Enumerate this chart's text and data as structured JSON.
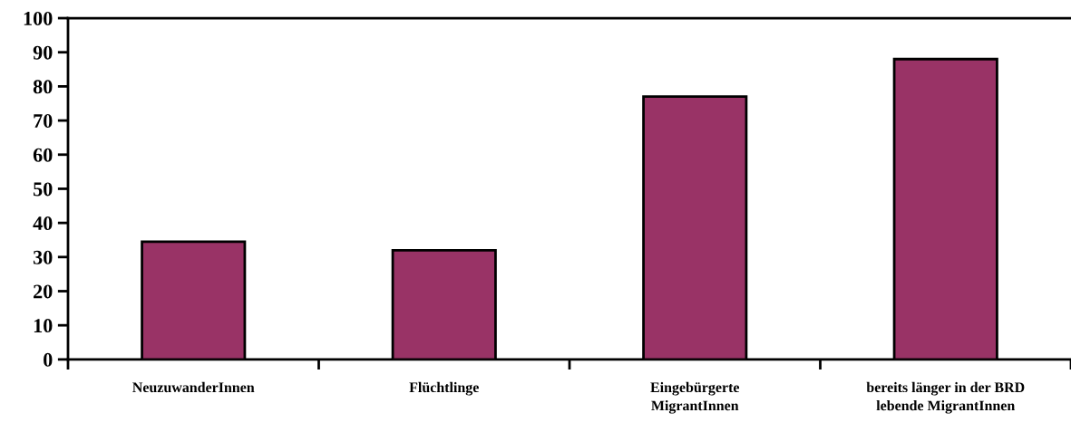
{
  "chart_data": {
    "type": "bar",
    "categories": [
      "NeuzuwanderInnen",
      "Flüchtlinge",
      "Eingebürgerte\nMigrantInnen",
      "bereits länger in der BRD\nlebende MigrantInnen"
    ],
    "values": [
      34.5,
      32,
      77,
      88
    ],
    "color": "#993366",
    "ylim": [
      0,
      100
    ],
    "yticks": [
      0,
      10,
      20,
      30,
      40,
      50,
      60,
      70,
      80,
      90,
      100
    ],
    "grid": false,
    "legend": false
  }
}
